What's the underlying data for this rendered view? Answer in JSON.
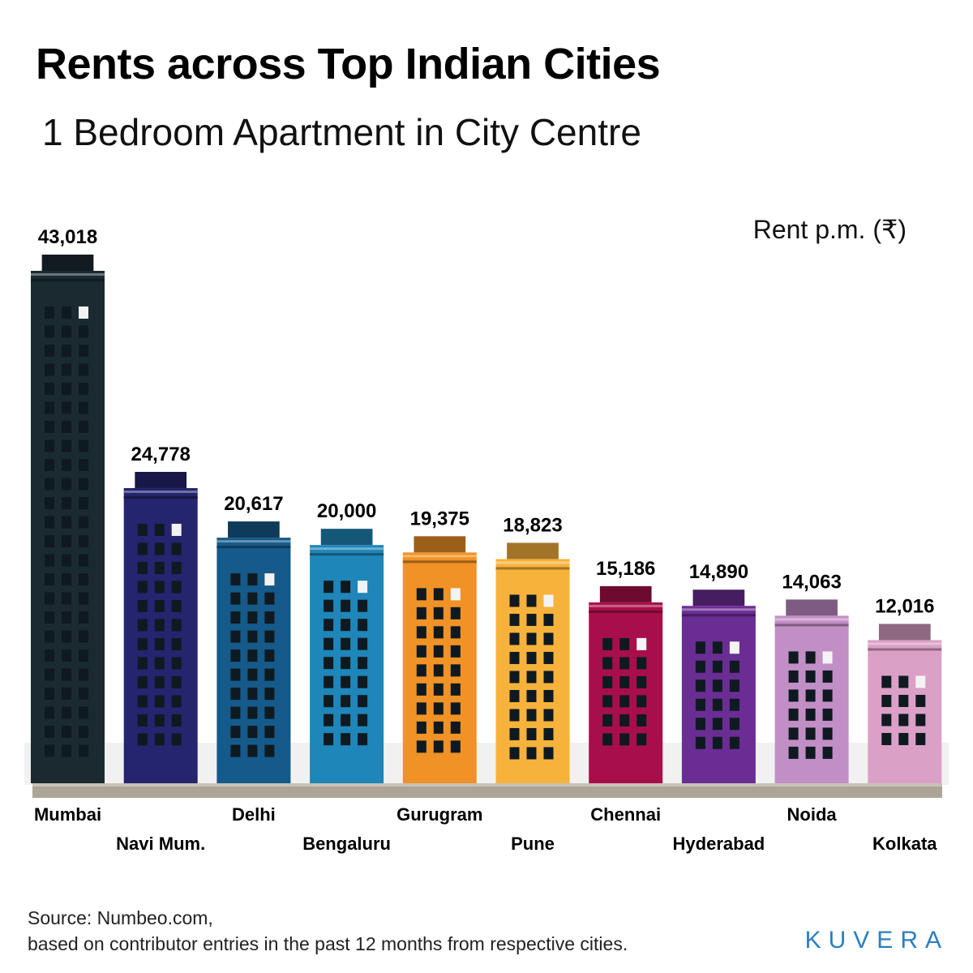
{
  "title": "Rents across Top Indian Cities",
  "subtitle": "1 Bedroom Apartment in City Centre",
  "unit_label": "Rent p.m. (₹)",
  "source_line1": "Source: Numbeo.com,",
  "source_line2": "based on contributor entries in the past 12 months from respective cities.",
  "brand": "KUVERA",
  "chart_data": {
    "type": "bar",
    "title": "Rents across Top Indian Cities",
    "subtitle": "1 Bedroom Apartment in City Centre",
    "ylabel": "Rent p.m. (₹)",
    "grid": false,
    "categories": [
      "Mumbai",
      "Navi Mum.",
      "Delhi",
      "Bengaluru",
      "Gurugram",
      "Pune",
      "Chennai",
      "Hyderabad",
      "Noida",
      "Kolkata"
    ],
    "values": [
      43018,
      24778,
      20617,
      20000,
      19375,
      18823,
      15186,
      14890,
      14063,
      12016
    ],
    "value_labels": [
      "43,018",
      "24,778",
      "20,617",
      "20,000",
      "19,375",
      "18,823",
      "15,186",
      "14,890",
      "14,063",
      "12,016"
    ],
    "colors": [
      "#1b2a30",
      "#25246e",
      "#155a8a",
      "#1e86b8",
      "#f09226",
      "#f7b23c",
      "#a80f4a",
      "#6a2d94",
      "#c28ec6",
      "#dba0c6"
    ]
  }
}
